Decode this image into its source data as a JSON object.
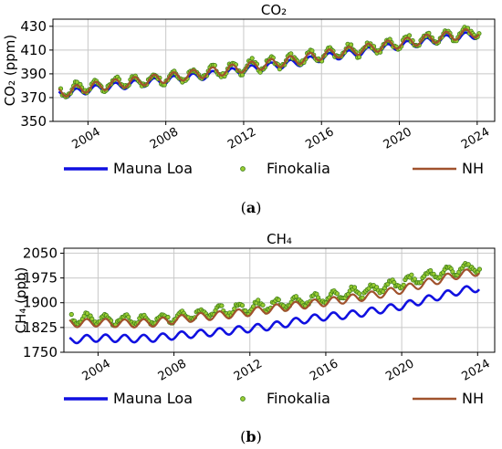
{
  "chart_data": [
    {
      "type": "line",
      "title": "CO₂",
      "ylabel": "CO₂ (ppm)",
      "xlabel": "",
      "xlim": [
        2002.2,
        2024.9
      ],
      "ylim": [
        350,
        436
      ],
      "yticks": [
        350,
        370,
        390,
        410,
        430
      ],
      "xticks": [
        2004,
        2008,
        2012,
        2016,
        2020,
        2024
      ],
      "xtick_labels": [
        "2004",
        "2008",
        "2012",
        "2016",
        "2020",
        "2024"
      ],
      "grid": true,
      "legend_position": "below",
      "caption": "(a)",
      "series": [
        {
          "name": "Mauna Loa",
          "style": "line",
          "color": "#1010e0",
          "x": [
            2002.5,
            2003,
            2004,
            2005,
            2006,
            2007,
            2008,
            2009,
            2010,
            2011,
            2012,
            2013,
            2014,
            2015,
            2016,
            2017,
            2018,
            2019,
            2020,
            2021,
            2022,
            2023,
            2024.1
          ],
          "y": [
            372.5,
            373.2,
            376.4,
            378.6,
            380.6,
            382.5,
            384.3,
            386.3,
            388.3,
            390.5,
            393.0,
            395.5,
            397.6,
            400.0,
            403.5,
            405.6,
            408.0,
            410.8,
            413.5,
            416.0,
            418.5,
            420.8,
            422.9
          ],
          "seasonal_amplitude": 3.2
        },
        {
          "name": "Finokalia",
          "style": "markers",
          "color": "#3f7f1a",
          "x": [
            2002.6,
            2003,
            2004,
            2005,
            2006,
            2007,
            2008,
            2009,
            2010,
            2011,
            2012,
            2013,
            2014,
            2015,
            2016,
            2017,
            2018,
            2019,
            2020,
            2021,
            2022,
            2023,
            2024.1
          ],
          "y": [
            374.5,
            376.0,
            379.0,
            381.0,
            383.0,
            384.8,
            387.0,
            389.0,
            391.0,
            393.0,
            395.6,
            398.0,
            400.0,
            402.6,
            405.8,
            408.0,
            410.4,
            413.0,
            415.5,
            418.3,
            420.6,
            423.0,
            426.0
          ],
          "seasonal_amplitude": 4.5
        },
        {
          "name": "NH",
          "style": "line",
          "color": "#a0522d",
          "x": [
            2002.5,
            2003,
            2004,
            2005,
            2006,
            2007,
            2008,
            2009,
            2010,
            2011,
            2012,
            2013,
            2014,
            2015,
            2016,
            2017,
            2018,
            2019,
            2020,
            2021,
            2022,
            2023,
            2024.1
          ],
          "y": [
            374.0,
            375.3,
            378.4,
            380.6,
            382.6,
            384.5,
            386.5,
            388.5,
            390.6,
            392.8,
            395.3,
            397.7,
            399.9,
            402.4,
            405.6,
            407.8,
            410.3,
            412.9,
            415.4,
            418.0,
            420.4,
            422.8,
            425.0
          ],
          "seasonal_amplitude": 4.0
        }
      ]
    },
    {
      "type": "line",
      "title": "CH₄",
      "ylabel": "CH₄ (ppb)",
      "xlabel": "",
      "xlim": [
        2002.2,
        2024.9
      ],
      "ylim": [
        1750,
        2065
      ],
      "yticks": [
        1750,
        1825,
        1900,
        1975,
        2050
      ],
      "xticks": [
        2004,
        2008,
        2012,
        2016,
        2020,
        2024
      ],
      "xtick_labels": [
        "2004",
        "2008",
        "2012",
        "2016",
        "2020",
        "2024"
      ],
      "grid": true,
      "legend_position": "below",
      "caption": "(b)",
      "series": [
        {
          "name": "Mauna Loa",
          "style": "line",
          "color": "#1010e0",
          "x": [
            2002.5,
            2003,
            2004,
            2005,
            2006,
            2007,
            2008,
            2009,
            2010,
            2011,
            2012,
            2013,
            2014,
            2015,
            2016,
            2017,
            2018,
            2019,
            2020,
            2021,
            2022,
            2023,
            2024.1
          ],
          "y": [
            1785,
            1790,
            1793,
            1792,
            1791,
            1793,
            1800,
            1805,
            1810,
            1815,
            1822,
            1828,
            1838,
            1850,
            1858,
            1862,
            1870,
            1880,
            1890,
            1905,
            1920,
            1935,
            1945
          ],
          "seasonal_amplitude": 11
        },
        {
          "name": "Finokalia",
          "style": "markers",
          "color": "#3f7f1a",
          "x": [
            2002.6,
            2003,
            2004,
            2005,
            2006,
            2007,
            2008,
            2009,
            2010,
            2011,
            2012,
            2013,
            2014,
            2015,
            2016,
            2017,
            2018,
            2019,
            2020,
            2021,
            2022,
            2023,
            2024.1
          ],
          "y": [
            1855,
            1850,
            1850,
            1848,
            1847,
            1850,
            1858,
            1865,
            1872,
            1878,
            1885,
            1892,
            1898,
            1905,
            1915,
            1925,
            1935,
            1948,
            1960,
            1975,
            1990,
            2000,
            2008
          ],
          "seasonal_amplitude": 14
        },
        {
          "name": "NH",
          "style": "line",
          "color": "#a0522d",
          "x": [
            2002.5,
            2003,
            2004,
            2005,
            2006,
            2007,
            2008,
            2009,
            2010,
            2011,
            2012,
            2013,
            2014,
            2015,
            2016,
            2017,
            2018,
            2019,
            2020,
            2021,
            2022,
            2023,
            2024.1
          ],
          "y": [
            1838,
            1838,
            1840,
            1838,
            1837,
            1840,
            1848,
            1855,
            1860,
            1865,
            1872,
            1880,
            1888,
            1895,
            1902,
            1910,
            1918,
            1928,
            1940,
            1955,
            1970,
            1985,
            1995
          ],
          "seasonal_amplitude": 12
        }
      ]
    }
  ]
}
